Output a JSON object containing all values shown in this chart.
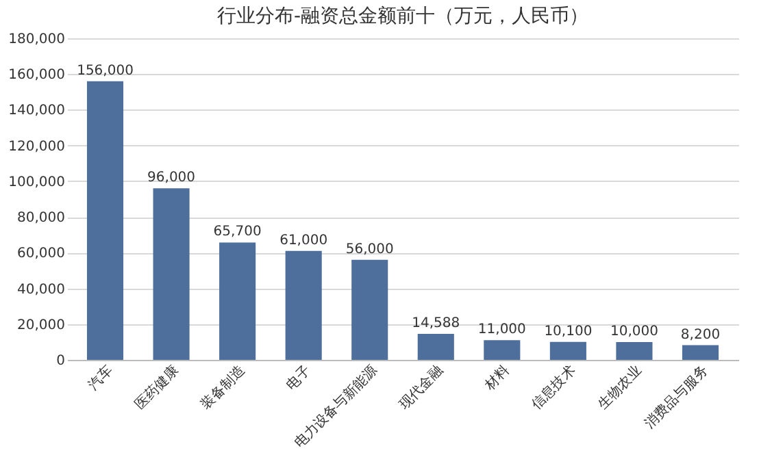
{
  "chart_data": {
    "type": "bar",
    "title": "行业分布-融资总金额前十（万元，人民币）",
    "categories": [
      "汽车",
      "医药健康",
      "装备制造",
      "电子",
      "电力设备与新能源",
      "现代金融",
      "材料",
      "信息技术",
      "生物农业",
      "消费品与服务"
    ],
    "values": [
      156000,
      96000,
      65700,
      61000,
      56000,
      14588,
      11000,
      10100,
      10000,
      8200
    ],
    "value_labels": [
      "156,000",
      "96,000",
      "65,700",
      "61,000",
      "56,000",
      "14,588",
      "11,000",
      "10,100",
      "10,000",
      "8,200"
    ],
    "color": "#4e6f9b",
    "ylim": [
      0,
      180000
    ],
    "yticks": [
      {
        "value": 0,
        "label": "0"
      },
      {
        "value": 20000,
        "label": "20,000"
      },
      {
        "value": 40000,
        "label": "40,000"
      },
      {
        "value": 60000,
        "label": "60,000"
      },
      {
        "value": 80000,
        "label": "80,000"
      },
      {
        "value": 100000,
        "label": "100,000"
      },
      {
        "value": 120000,
        "label": "120,000"
      },
      {
        "value": 140000,
        "label": "140,000"
      },
      {
        "value": 160000,
        "label": "160,000"
      },
      {
        "value": 180000,
        "label": "180,000"
      }
    ],
    "grid": "y"
  }
}
